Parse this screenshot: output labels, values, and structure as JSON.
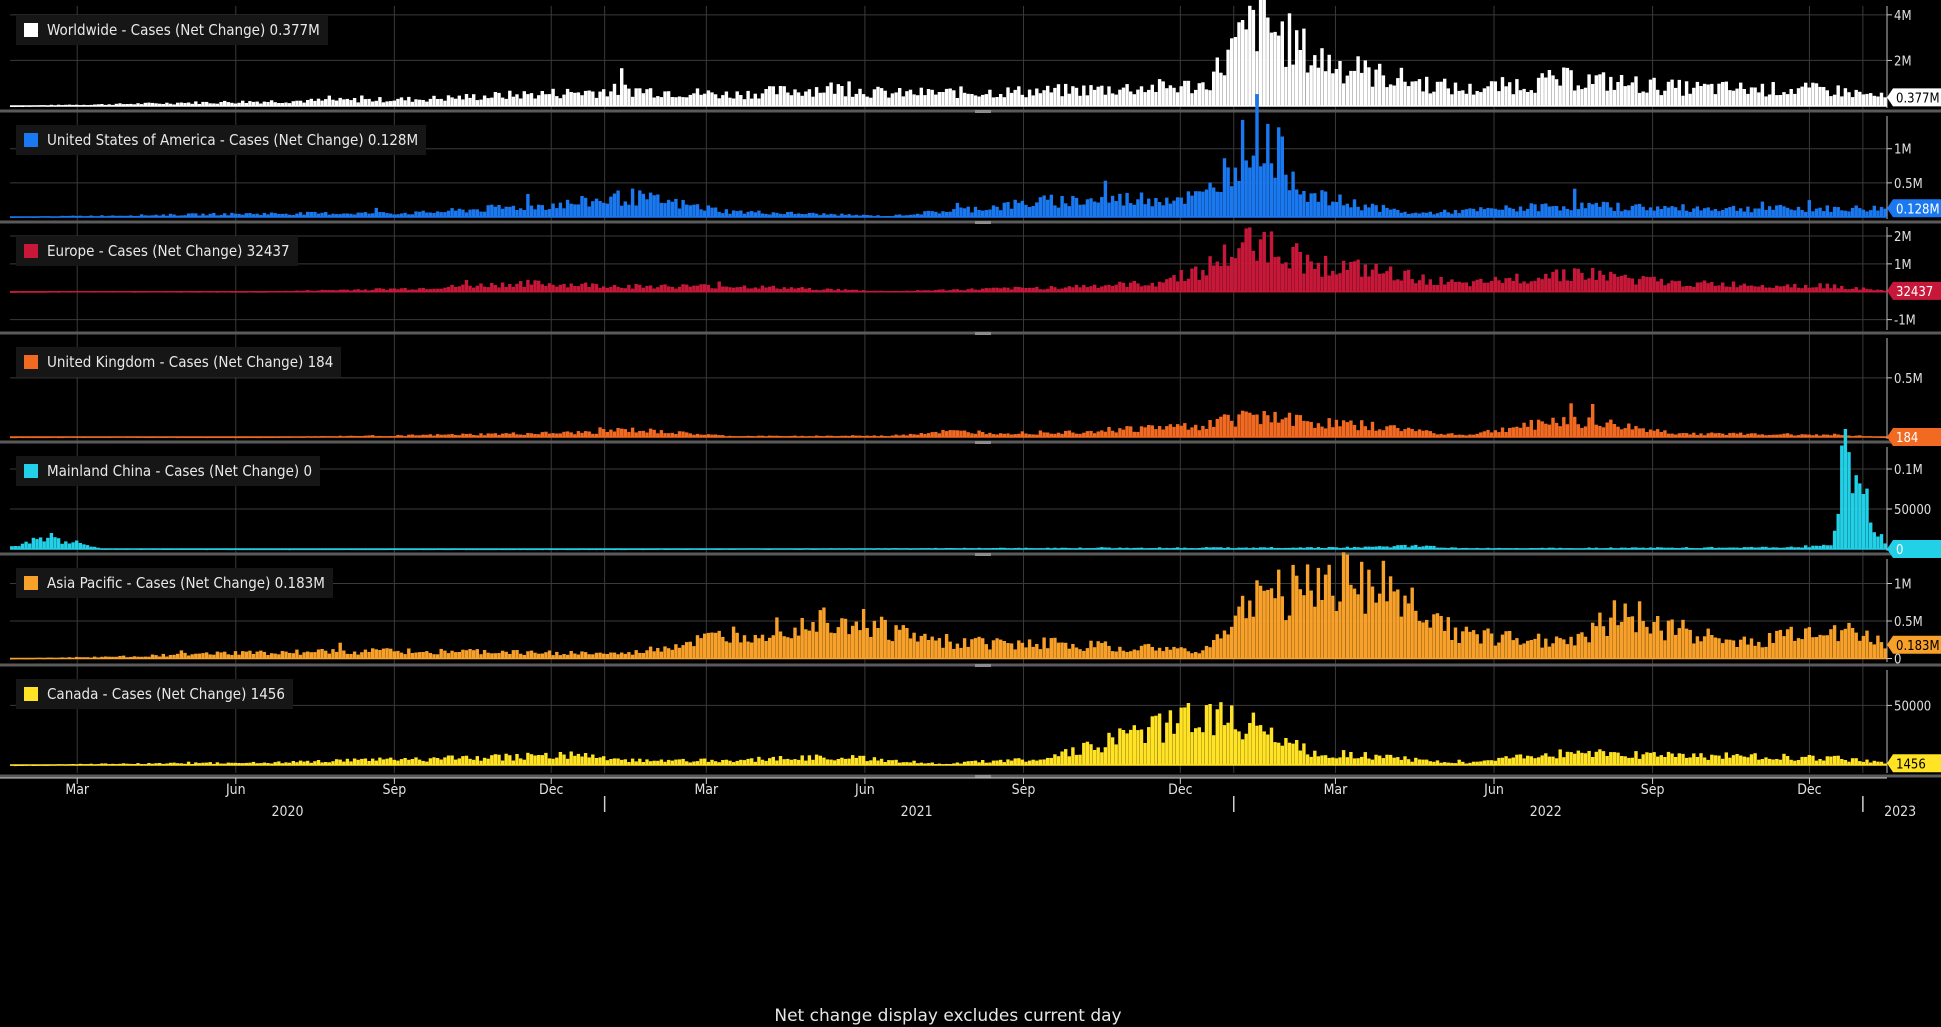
{
  "footnote": "Net change display excludes current day",
  "x_axis": {
    "months": [
      "Mar",
      "Jun",
      "Sep",
      "Dec",
      "Mar",
      "Jun",
      "Sep",
      "Dec",
      "Mar",
      "Jun",
      "Sep",
      "Dec"
    ],
    "years": [
      "2020",
      "2021",
      "2022",
      "2023"
    ]
  },
  "chart_data": [
    {
      "type": "bar",
      "title": "Worldwide - Cases (Net Change) 0.377M",
      "color": "#ffffff",
      "badge": "0.377M",
      "badge_text_color": "#000000",
      "ylim": [
        0,
        4300000
      ],
      "y_ticks": [
        {
          "v": 4000000,
          "label": "4M"
        },
        {
          "v": 2000000,
          "label": "2M"
        }
      ],
      "last_value": 377000,
      "x": [
        "2020-01",
        "2020-03",
        "2020-06",
        "2020-09",
        "2020-12",
        "2021-01",
        "2021-03",
        "2021-05",
        "2021-06",
        "2021-09",
        "2021-12",
        "2022-01",
        "2022-02",
        "2022-03",
        "2022-05",
        "2022-07",
        "2022-09",
        "2022-12",
        "2023-01"
      ],
      "values": [
        0,
        70000,
        200000,
        300000,
        600000,
        720000,
        500000,
        800000,
        550000,
        650000,
        900000,
        3800000,
        2200000,
        1500000,
        700000,
        1200000,
        800000,
        700000,
        377000
      ]
    },
    {
      "type": "bar",
      "title": "United States of America - Cases (Net Change) 0.128M",
      "color": "#1a78f0",
      "badge": "0.128M",
      "badge_text_color": "#ffffff",
      "ylim": [
        0,
        1450000
      ],
      "y_ticks": [
        {
          "v": 1000000,
          "label": "1M"
        },
        {
          "v": 500000,
          "label": "0.5M"
        }
      ],
      "last_value": 128000,
      "x": [
        "2020-01",
        "2020-03",
        "2020-06",
        "2020-09",
        "2020-12",
        "2021-01",
        "2021-03",
        "2021-06",
        "2021-08",
        "2021-09",
        "2021-12",
        "2022-01",
        "2022-02",
        "2022-04",
        "2022-07",
        "2022-09",
        "2022-12",
        "2023-01"
      ],
      "values": [
        0,
        20000,
        50000,
        60000,
        200000,
        300000,
        80000,
        15000,
        150000,
        230000,
        300000,
        1300000,
        300000,
        50000,
        170000,
        130000,
        120000,
        128000
      ]
    },
    {
      "type": "bar",
      "title": "Europe - Cases (Net Change) 32437",
      "color": "#c8183a",
      "badge": "32437",
      "badge_text_color": "#ffffff",
      "ylim": [
        -1300000,
        2250000
      ],
      "y_ticks": [
        {
          "v": 2000000,
          "label": "2M"
        },
        {
          "v": 1000000,
          "label": "1M"
        },
        {
          "v": -1000000,
          "label": "-1M"
        }
      ],
      "last_value": 32437,
      "x": [
        "2020-01",
        "2020-03",
        "2020-06",
        "2020-09",
        "2020-11",
        "2021-01",
        "2021-03",
        "2021-06",
        "2021-09",
        "2021-11",
        "2021-12",
        "2022-01",
        "2022-02",
        "2022-03",
        "2022-05",
        "2022-07",
        "2022-09",
        "2022-12",
        "2023-01"
      ],
      "values": [
        0,
        20000,
        10000,
        120000,
        300000,
        200000,
        200000,
        20000,
        150000,
        300000,
        800000,
        1900000,
        1000000,
        800000,
        250000,
        700000,
        300000,
        200000,
        32437
      ]
    },
    {
      "type": "bar",
      "title": "United Kingdom - Cases (Net Change) 184",
      "color": "#f26a22",
      "badge": "184",
      "badge_text_color": "#ffffff",
      "ylim": [
        0,
        820000
      ],
      "y_ticks": [
        {
          "v": 500000,
          "label": "0.5M"
        }
      ],
      "last_value": 184,
      "x": [
        "2020-01",
        "2020-03",
        "2020-06",
        "2020-09",
        "2020-12",
        "2021-01",
        "2021-03",
        "2021-06",
        "2021-07",
        "2021-09",
        "2021-12",
        "2022-01",
        "2022-02",
        "2022-03",
        "2022-05",
        "2022-07",
        "2022-09",
        "2022-12",
        "2023-01"
      ],
      "values": [
        0,
        3000,
        1000,
        15000,
        35000,
        60000,
        8000,
        10000,
        45000,
        35000,
        100000,
        200000,
        120000,
        100000,
        15000,
        150000,
        30000,
        20000,
        184
      ]
    },
    {
      "type": "bar",
      "title": "Mainland China - Cases (Net Change) 0",
      "color": "#22d0e8",
      "badge": "0",
      "badge_text_color": "#ffffff",
      "ylim": [
        0,
        125000
      ],
      "y_ticks": [
        {
          "v": 100000,
          "label": "0.1M"
        },
        {
          "v": 50000,
          "label": "50000"
        }
      ],
      "last_value": 0,
      "x": [
        "2020-01",
        "2020-02",
        "2020-03",
        "2020-06",
        "2021-01",
        "2022-03",
        "2022-04",
        "2022-05",
        "2022-11",
        "2022-12",
        "2022-12-20",
        "2023-01"
      ],
      "values": [
        0,
        15000,
        500,
        100,
        200,
        2000,
        4000,
        1000,
        2000,
        5000,
        120000,
        0
      ]
    },
    {
      "type": "bar",
      "title": "Asia Pacific - Cases (Net Change) 0.183M",
      "color": "#f7a02a",
      "badge": "0.183M",
      "badge_text_color": "#000000",
      "ylim": [
        -20000,
        1300000
      ],
      "y_ticks": [
        {
          "v": 1000000,
          "label": "1M"
        },
        {
          "v": 500000,
          "label": "0.5M"
        },
        {
          "v": 0,
          "label": "0"
        }
      ],
      "last_value": 183000,
      "x": [
        "2020-01",
        "2020-03",
        "2020-06",
        "2020-09",
        "2021-01",
        "2021-05",
        "2021-07",
        "2021-09",
        "2021-12",
        "2022-01",
        "2022-03",
        "2022-05",
        "2022-07",
        "2022-08",
        "2022-10",
        "2022-12",
        "2023-01"
      ],
      "values": [
        0,
        20000,
        80000,
        100000,
        60000,
        550000,
        200000,
        200000,
        100000,
        800000,
        1100000,
        300000,
        250000,
        600000,
        200000,
        400000,
        183000
      ]
    },
    {
      "type": "bar",
      "title": "Canada - Cases (Net Change) 1456",
      "color": "#ffe324",
      "badge": "1456",
      "badge_text_color": "#000000",
      "ylim": [
        -5000,
        78000
      ],
      "y_ticks": [
        {
          "v": 50000,
          "label": "50000"
        }
      ],
      "last_value": 1456,
      "x": [
        "2020-01",
        "2020-03",
        "2020-06",
        "2020-09",
        "2020-12",
        "2021-01",
        "2021-03",
        "2021-05",
        "2021-07",
        "2021-09",
        "2021-12",
        "2022-01",
        "2022-02",
        "2022-03",
        "2022-05",
        "2022-07",
        "2022-09",
        "2022-12",
        "2023-01"
      ],
      "values": [
        0,
        1000,
        2000,
        5000,
        8000,
        4000,
        4000,
        7000,
        1000,
        6000,
        40000,
        35000,
        10000,
        8000,
        2000,
        10000,
        8000,
        6000,
        1456
      ]
    }
  ]
}
